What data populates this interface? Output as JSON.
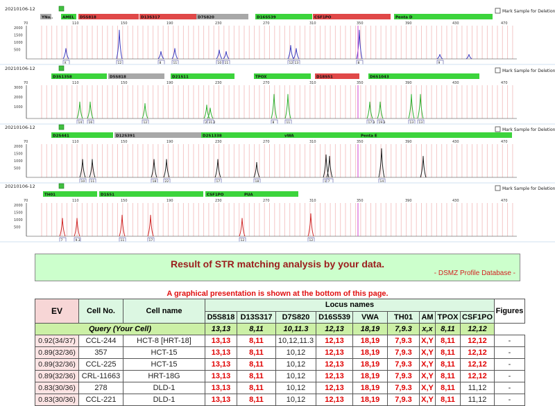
{
  "electropherogram": {
    "panels": [
      {
        "date": "20210106-12",
        "mark_text": "Mark Sample for Deletion",
        "loci": [
          {
            "name": "YNo..",
            "color": "#a8a8a8"
          },
          {
            "name": "AMEL",
            "color": "#3cd43c"
          },
          {
            "name": "D5S818",
            "color": "#e04848"
          },
          {
            "name": "D13S317",
            "color": "#e04848"
          },
          {
            "name": "D7S820",
            "color": "#a8a8a8"
          },
          {
            "name": "D16S539",
            "color": "#3cd43c"
          },
          {
            "name": "CSF1PO",
            "color": "#e04848"
          },
          {
            "name": "Penta D",
            "color": "#3cd43c"
          }
        ],
        "ticks": [
          "70",
          "110",
          "150",
          "190",
          "230",
          "270",
          "310",
          "350",
          "390",
          "430",
          "470"
        ],
        "y_ticks": [
          "2000",
          "1500",
          "1000",
          "500"
        ],
        "trace_color": "#4040c0",
        "allele_labels": [
          "X",
          "12",
          "8",
          "11",
          "10",
          "11",
          "12",
          "13",
          "8",
          "9"
        ]
      },
      {
        "date": "20210106-12",
        "mark_text": "Mark Sample for Deletion",
        "loci": [
          {
            "name": "D3S1358",
            "color": "#3cd43c"
          },
          {
            "name": "D5S818",
            "color": "#a8a8a8"
          },
          {
            "name": "D21S11",
            "color": "#3cd43c"
          },
          {
            "name": "TPOX",
            "color": "#3cd43c"
          },
          {
            "name": "D18S51",
            "color": "#e04848"
          },
          {
            "name": "D6S1043",
            "color": "#3cd43c"
          }
        ],
        "ticks": [
          "70",
          "110",
          "150",
          "190",
          "230",
          "270",
          "310",
          "350",
          "390",
          "430",
          "470"
        ],
        "y_ticks": [
          "3000",
          "2000",
          "1000"
        ],
        "trace_color": "#30b030",
        "allele_labels": [
          "14",
          "16",
          "12",
          "29",
          "31.2",
          "8",
          "11",
          "17.3",
          "19.3",
          "13",
          "13"
        ]
      },
      {
        "date": "20210106-12",
        "mark_text": "Mark Sample for Deletion",
        "loci": [
          {
            "name": "D2S441",
            "color": "#3cd43c"
          },
          {
            "name": "D12S391",
            "color": "#a8a8a8"
          },
          {
            "name": "D2S1338",
            "color": "#3cd43c"
          },
          {
            "name": "vWA",
            "color": "#3cd43c"
          },
          {
            "name": "Penta E",
            "color": "#3cd43c"
          }
        ],
        "ticks": [
          "70",
          "110",
          "150",
          "190",
          "230",
          "270",
          "310",
          "350",
          "390",
          "430",
          "470"
        ],
        "y_ticks": [
          "2000",
          "1500",
          "1000",
          "500"
        ],
        "trace_color": "#202020",
        "allele_labels": [
          "10",
          "11",
          "18",
          "22",
          "17",
          "18",
          "19",
          "7",
          "14"
        ]
      },
      {
        "date": "20210106-12",
        "mark_text": "Mark Sample for Deletion",
        "loci": [
          {
            "name": "TH01",
            "color": "#3cd43c"
          },
          {
            "name": "D1S51",
            "color": "#3cd43c"
          },
          {
            "name": "CSF1PO",
            "color": "#3cd43c"
          },
          {
            "name": "PUA",
            "color": "#3cd43c"
          }
        ],
        "ticks": [
          "70",
          "110",
          "150",
          "190",
          "230",
          "270",
          "310",
          "350",
          "390",
          "430",
          "470"
        ],
        "y_ticks": [
          "2000",
          "1500",
          "1000",
          "500"
        ],
        "trace_color": "#d02828",
        "allele_labels": [
          "7",
          "9.3",
          "11",
          "17",
          "12",
          "12"
        ]
      }
    ]
  },
  "result": {
    "title": "Result of STR matching analysis by your data.",
    "source": "- DSMZ Profile Database -",
    "note": "A graphical presentation is shown at the bottom of this page."
  },
  "table": {
    "headers": {
      "ev": "EV",
      "cell_no": "Cell No.",
      "cell_name": "Cell name",
      "locus_names": "Locus names",
      "figures": "Figures"
    },
    "loci": [
      "D5S818",
      "D13S317",
      "D7S820",
      "D16S539",
      "VWA",
      "TH01",
      "AM",
      "TPOX",
      "CSF1PO"
    ],
    "query": {
      "label": "Query (Your Cell)",
      "values": [
        "13,13",
        "8,11",
        "10,11.3",
        "12,13",
        "18,19",
        "7,9.3",
        "x,x",
        "8,11",
        "12,12"
      ]
    },
    "rows": [
      {
        "ev": "0.92(34/37)",
        "no": "CCL-244",
        "name": "HCT-8 [HRT-18]",
        "values": [
          "13,13",
          "8,11",
          "10,12,11.3",
          "12,13",
          "18,19",
          "7,9.3",
          "X,Y",
          "8,11",
          "12,12"
        ],
        "fig": "-"
      },
      {
        "ev": "0.89(32/36)",
        "no": "357",
        "name": "HCT-15",
        "values": [
          "13,13",
          "8,11",
          "10,12",
          "12,13",
          "18,19",
          "7,9.3",
          "X,Y",
          "8,11",
          "12,12"
        ],
        "fig": "-"
      },
      {
        "ev": "0.89(32/36)",
        "no": "CCL-225",
        "name": "HCT-15",
        "values": [
          "13,13",
          "8,11",
          "10,12",
          "12,13",
          "18,19",
          "7,9.3",
          "X,Y",
          "8,11",
          "12,12"
        ],
        "fig": "-"
      },
      {
        "ev": "0.89(32/36)",
        "no": "CRL-11663",
        "name": "HRT-18G",
        "values": [
          "13,13",
          "8,11",
          "10,12",
          "12,13",
          "18,19",
          "7,9.3",
          "X,Y",
          "8,11",
          "12,12"
        ],
        "fig": "-"
      },
      {
        "ev": "0.83(30/36)",
        "no": "278",
        "name": "DLD-1",
        "values": [
          "13,13",
          "8,11",
          "10,12",
          "12,13",
          "18,19",
          "7,9.3",
          "X,Y",
          "8,11",
          "11,12"
        ],
        "fig": "-"
      },
      {
        "ev": "0.83(30/36)",
        "no": "CCL-221",
        "name": "DLD-1",
        "values": [
          "13,13",
          "8,11",
          "10,12",
          "12,13",
          "18,19",
          "7,9.3",
          "X,Y",
          "8,11",
          "11,12"
        ],
        "fig": "-"
      }
    ],
    "colors": {
      "match": "#e00000",
      "query_bg": "#ccf0a6",
      "ev_bg": "#fce4e4",
      "header_bg": "#dcf7e2"
    }
  }
}
